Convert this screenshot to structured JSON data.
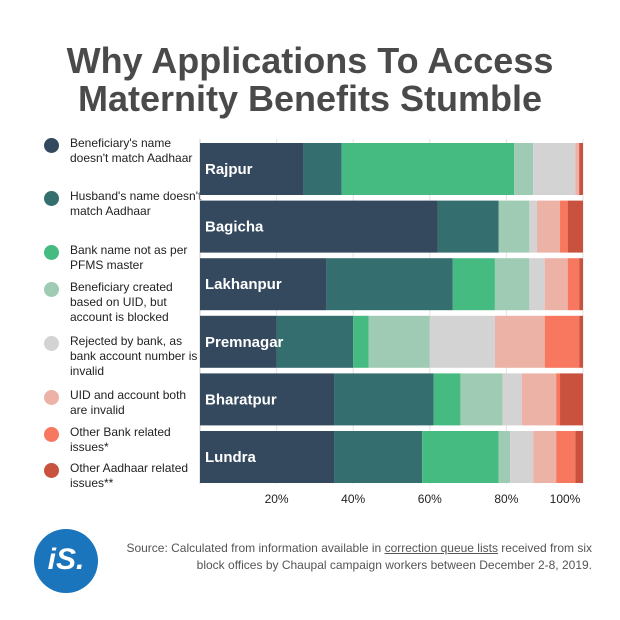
{
  "title_line1": "Why Applications To Access",
  "title_line2": "Maternity Benefits Stumble",
  "legend": [
    {
      "label": "Beneficiary's name doesn't match Aadhaar",
      "color": "#34495e"
    },
    {
      "label": "Husband's name doesn't match Aadhaar",
      "color": "#356e6e"
    },
    {
      "label": "Bank name not as per PFMS master",
      "color": "#45bb82"
    },
    {
      "label": "Beneficiary created based on UID, but account is blocked",
      "color": "#9fcbb4"
    },
    {
      "label": "Rejected by bank, as bank account number is invalid",
      "color": "#d3d3d3"
    },
    {
      "label": "UID and account both are invalid",
      "color": "#ecb2a6"
    },
    {
      "label": "Other Bank related issues*",
      "color": "#f7785f"
    },
    {
      "label": "Other Aadhaar related issues**",
      "color": "#c9523f"
    }
  ],
  "chart_data": {
    "type": "bar",
    "orientation": "horizontal",
    "stacked": true,
    "percent": true,
    "categories": [
      "Rajpur",
      "Bagicha",
      "Lakhanpur",
      "Premnagar",
      "Bharatpur",
      "Lundra"
    ],
    "series": [
      {
        "name": "Beneficiary's name doesn't match Aadhaar",
        "color": "#34495e",
        "values": [
          27,
          62,
          33,
          20,
          35,
          35
        ]
      },
      {
        "name": "Husband's name doesn't match Aadhaar",
        "color": "#356e6e",
        "values": [
          10,
          16,
          33,
          20,
          26,
          23
        ]
      },
      {
        "name": "Bank name not as per PFMS master",
        "color": "#45bb82",
        "values": [
          45,
          0,
          11,
          4,
          7,
          20
        ]
      },
      {
        "name": "Beneficiary created based on UID, but account is blocked",
        "color": "#9fcbb4",
        "values": [
          5,
          8,
          9,
          16,
          11,
          3
        ]
      },
      {
        "name": "Rejected by bank, as bank account number is invalid",
        "color": "#d3d3d3",
        "values": [
          11,
          2,
          4,
          17,
          5,
          6
        ]
      },
      {
        "name": "UID and account both are invalid",
        "color": "#ecb2a6",
        "values": [
          1,
          6,
          6,
          13,
          9,
          6
        ]
      },
      {
        "name": "Other Bank related issues*",
        "color": "#f7785f",
        "values": [
          0,
          2,
          3,
          9,
          1,
          5
        ]
      },
      {
        "name": "Other Aadhaar related issues**",
        "color": "#c9523f",
        "values": [
          1,
          4,
          1,
          1,
          6,
          2
        ]
      }
    ],
    "xticks": [
      "20%",
      "40%",
      "60%",
      "80%",
      "100%"
    ],
    "xlim": [
      0,
      100
    ],
    "grid": true,
    "legend_position": "left"
  },
  "source": {
    "prefix": "Source: Calculated from information available in ",
    "link": "correction queue lists",
    "suffix": " received from six block offices by Chaupal campaign workers between December 2-8, 2019."
  },
  "logo_text": "iS."
}
